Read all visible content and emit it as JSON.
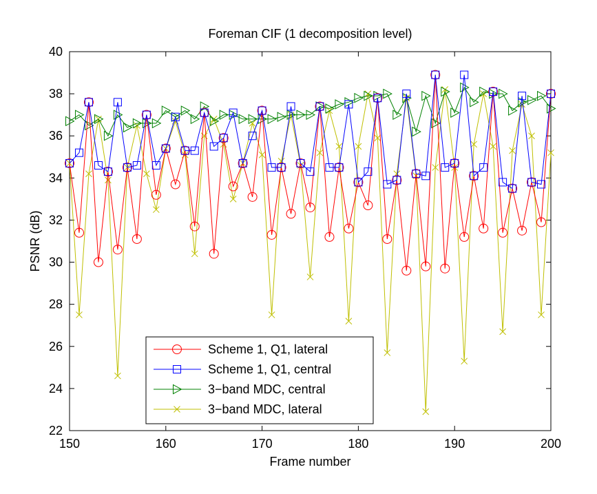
{
  "chart_data": {
    "type": "line",
    "title": "Foreman CIF (1 decomposition level)",
    "xlabel": "Frame number",
    "ylabel": "PSNR (dB)",
    "xlim": [
      150,
      200
    ],
    "ylim": [
      22,
      40
    ],
    "xticks": [
      150,
      160,
      170,
      180,
      190,
      200
    ],
    "yticks": [
      22,
      24,
      26,
      28,
      30,
      32,
      34,
      36,
      38,
      40
    ],
    "grid": false,
    "legend_position": "bottom-center",
    "x": [
      150,
      151,
      152,
      153,
      154,
      155,
      156,
      157,
      158,
      159,
      160,
      161,
      162,
      163,
      164,
      165,
      166,
      167,
      168,
      169,
      170,
      171,
      172,
      173,
      174,
      175,
      176,
      177,
      178,
      179,
      180,
      181,
      182,
      183,
      184,
      185,
      186,
      187,
      188,
      189,
      190,
      191,
      192,
      193,
      194,
      195,
      196,
      197,
      198,
      199,
      200
    ],
    "series": [
      {
        "name": "Scheme 1, Q1, lateral",
        "color": "#ff0000",
        "marker": "circle",
        "values": [
          34.7,
          31.4,
          37.6,
          30.0,
          34.3,
          30.6,
          34.5,
          31.1,
          37.0,
          33.2,
          35.4,
          33.7,
          35.3,
          31.7,
          37.1,
          30.4,
          35.9,
          33.6,
          34.7,
          33.1,
          37.2,
          31.3,
          34.5,
          32.3,
          34.7,
          32.6,
          37.4,
          31.2,
          34.5,
          31.6,
          33.8,
          32.7,
          37.8,
          31.1,
          33.9,
          29.6,
          34.2,
          29.8,
          38.9,
          29.7,
          34.7,
          31.2,
          34.1,
          31.6,
          38.1,
          31.4,
          33.5,
          31.5,
          33.8,
          31.9,
          38.0
        ]
      },
      {
        "name": "Scheme 1, Q1, central",
        "color": "#0000ff",
        "marker": "square",
        "values": [
          34.7,
          35.2,
          37.6,
          34.6,
          34.3,
          37.6,
          34.5,
          34.6,
          37.0,
          34.6,
          35.4,
          36.9,
          35.3,
          35.3,
          37.1,
          35.5,
          35.9,
          37.1,
          34.7,
          36.0,
          37.2,
          34.5,
          34.5,
          37.4,
          34.7,
          34.3,
          37.4,
          34.5,
          34.5,
          37.5,
          33.8,
          34.3,
          37.8,
          33.7,
          33.9,
          38.0,
          34.2,
          34.1,
          38.9,
          34.5,
          34.7,
          38.9,
          34.1,
          34.5,
          38.1,
          33.8,
          33.5,
          37.9,
          33.8,
          33.7,
          38.0
        ]
      },
      {
        "name": "3−band MDC, central",
        "color": "#008000",
        "marker": "triangle-right",
        "values": [
          36.7,
          37.0,
          36.5,
          36.8,
          36.0,
          37.0,
          36.4,
          36.6,
          36.6,
          36.6,
          37.2,
          36.9,
          37.2,
          36.8,
          37.4,
          36.7,
          37.0,
          37.0,
          36.8,
          36.8,
          36.8,
          36.8,
          36.9,
          37.0,
          37.0,
          37.0,
          37.4,
          37.3,
          37.5,
          37.6,
          37.8,
          37.9,
          37.9,
          38.0,
          37.0,
          37.8,
          36.2,
          37.9,
          36.6,
          38.1,
          37.1,
          38.3,
          37.6,
          38.1,
          38.0,
          38.0,
          37.2,
          37.6,
          37.7,
          37.9,
          37.3
        ]
      },
      {
        "name": "3−band MDC, lateral",
        "color": "#bfbf00",
        "marker": "x",
        "values": [
          34.7,
          27.5,
          34.2,
          36.8,
          33.9,
          24.6,
          34.5,
          36.5,
          34.2,
          32.5,
          35.4,
          36.7,
          35.1,
          30.4,
          36.0,
          36.8,
          35.6,
          33.0,
          34.7,
          36.6,
          35.1,
          27.5,
          34.8,
          37.0,
          34.6,
          29.3,
          35.2,
          37.2,
          35.5,
          27.2,
          35.5,
          38.0,
          35.9,
          25.7,
          34.2,
          37.8,
          34.1,
          22.9,
          34.5,
          38.2,
          34.5,
          25.3,
          35.6,
          38.0,
          35.5,
          26.7,
          35.3,
          37.5,
          36.0,
          27.5,
          35.2
        ]
      }
    ]
  }
}
